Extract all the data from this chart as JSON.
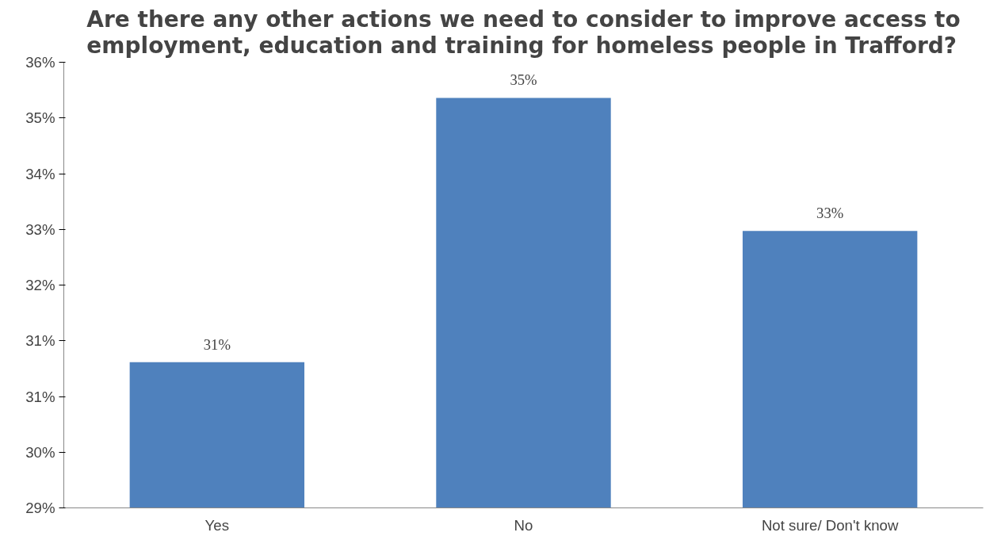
{
  "chart_data": {
    "type": "bar",
    "title": "Are there any other actions we need to consider to improve access to employment, education and training for homeless people in Trafford?",
    "categories": [
      "Yes",
      "No",
      "Not sure/ Don't know"
    ],
    "values": [
      31.09,
      35.24,
      33.15
    ],
    "value_labels": [
      "31%",
      "35%",
      "33%"
    ],
    "color": "#4f81bd",
    "ylim": [
      28.8,
      35.8
    ],
    "yticks": [
      {
        "value": 28.8,
        "label": "29%"
      },
      {
        "value": 29.675,
        "label": "30%"
      },
      {
        "value": 30.55,
        "label": "31%"
      },
      {
        "value": 31.425,
        "label": "31%"
      },
      {
        "value": 32.3,
        "label": "32%"
      },
      {
        "value": 33.175,
        "label": "33%"
      },
      {
        "value": 34.05,
        "label": "34%"
      },
      {
        "value": 34.925,
        "label": "35%"
      },
      {
        "value": 35.8,
        "label": "36%"
      }
    ],
    "grid": false
  }
}
